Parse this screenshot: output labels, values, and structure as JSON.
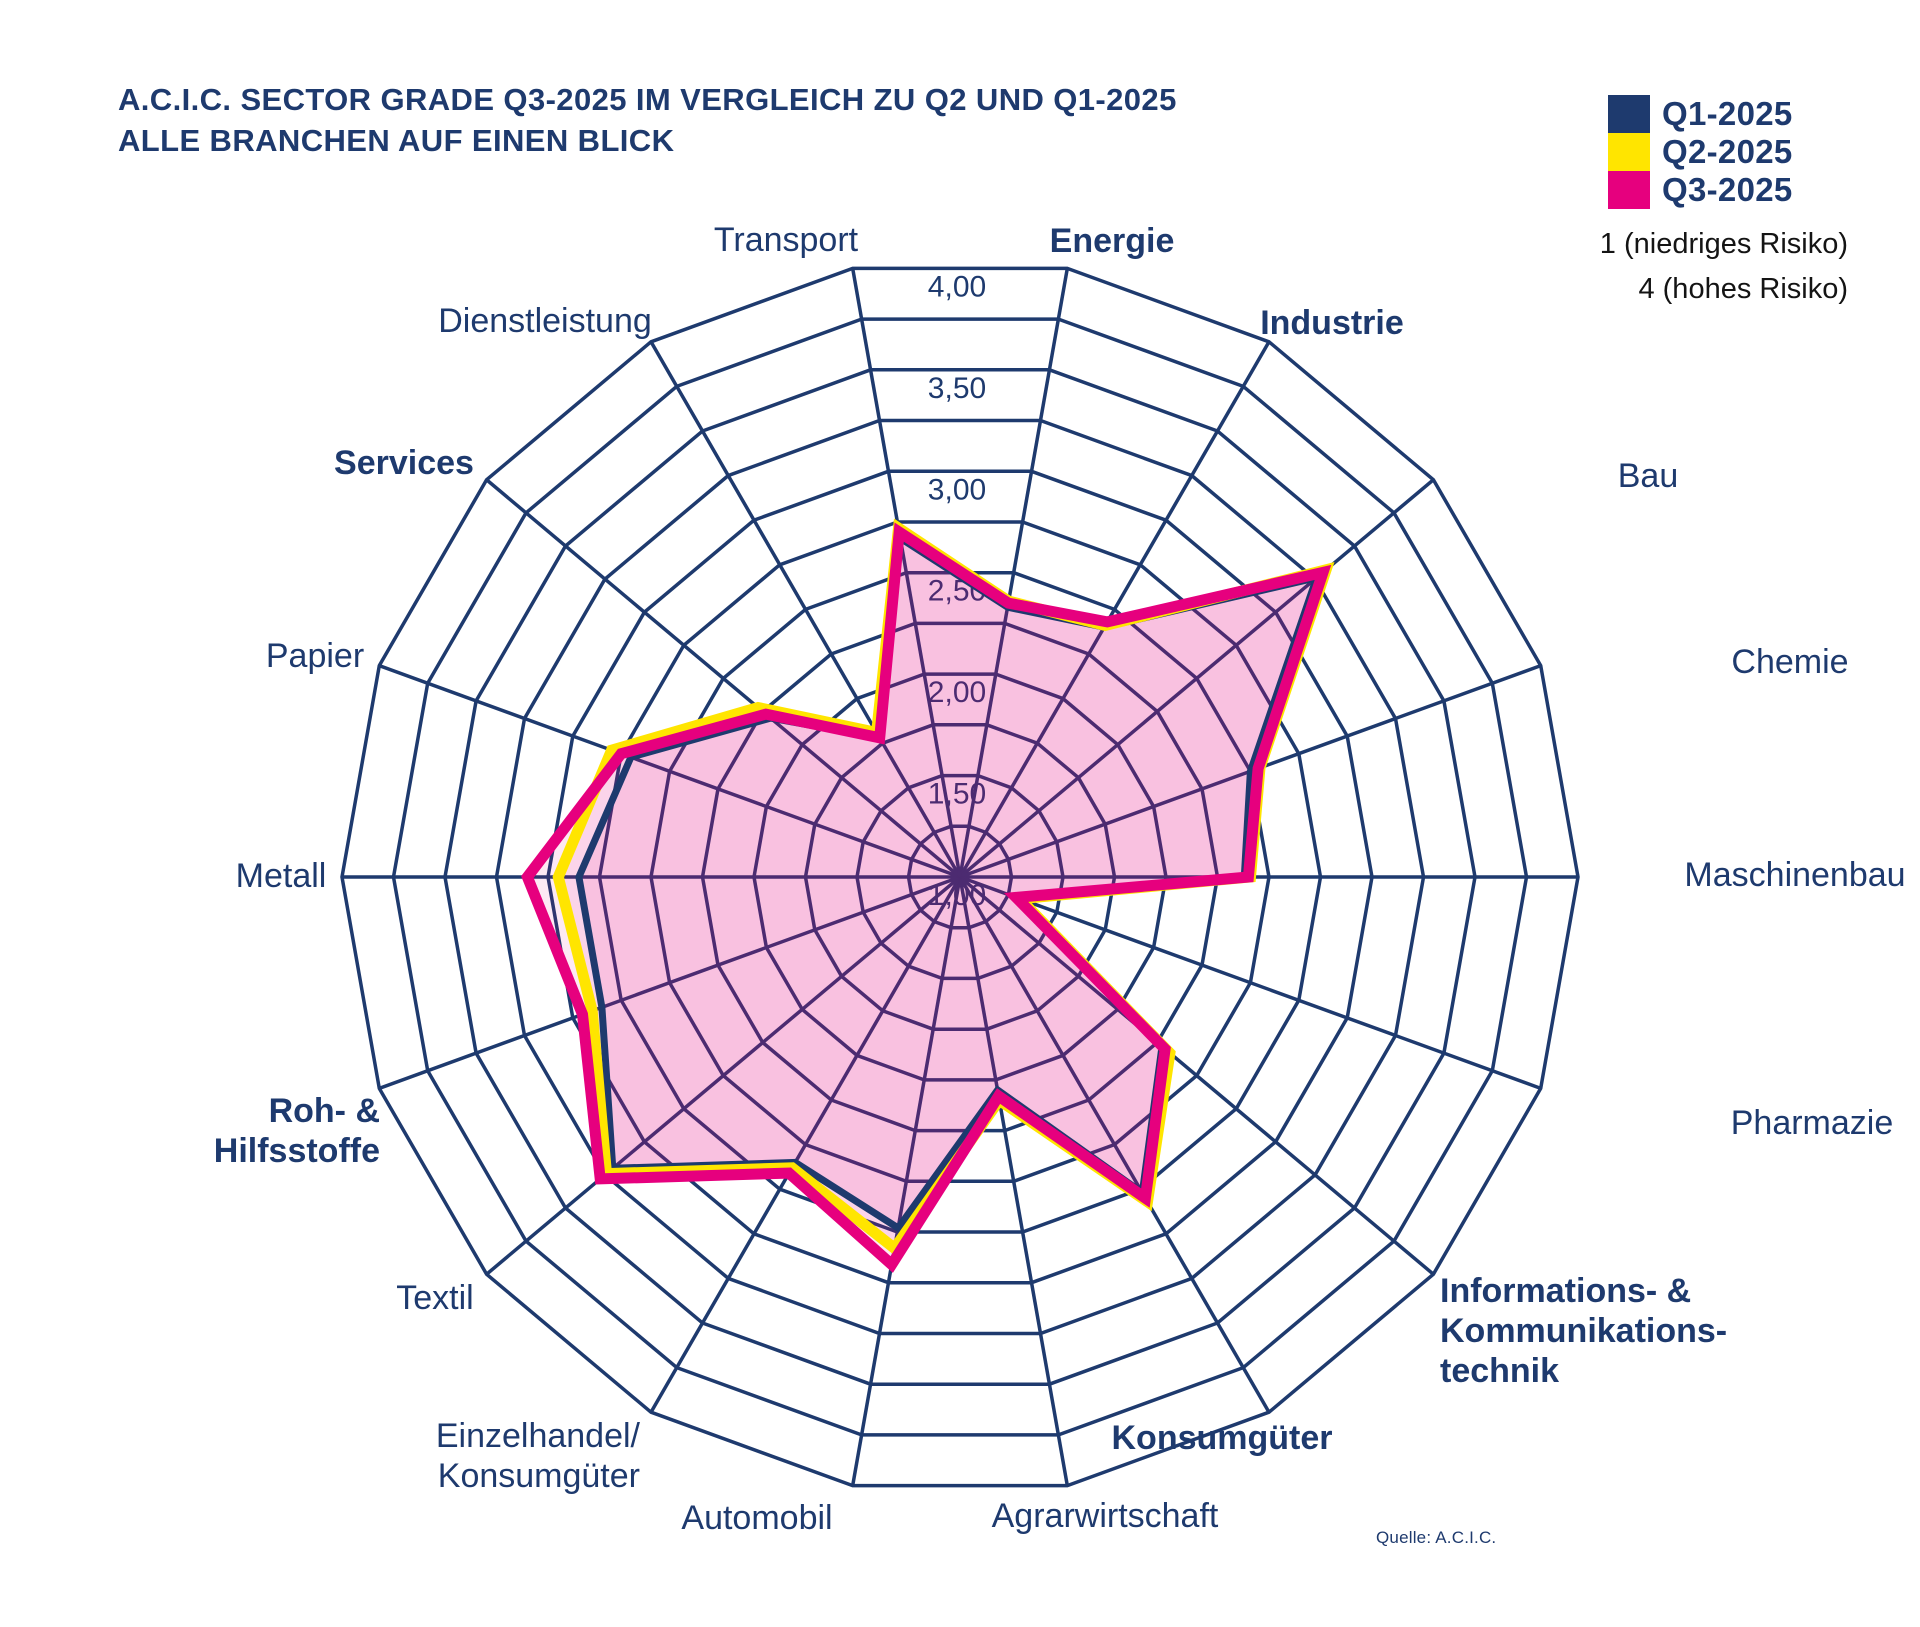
{
  "title": {
    "line1": "A.C.I.C. SECTOR GRADE Q3-2025 IM VERGLEICH ZU Q2 UND Q1-2025",
    "line2": "ALLE BRANCHEN AUF EINEN BLICK"
  },
  "legend": {
    "items": [
      {
        "label": "Q1-2025",
        "color": "#1E3A6E"
      },
      {
        "label": "Q2-2025",
        "color": "#FFE500"
      },
      {
        "label": "Q3-2025",
        "color": "#E6007E"
      }
    ],
    "risk_low": "1 (niedriges Risiko)",
    "risk_high": "4 (hohes Risiko)"
  },
  "source": "Quelle: A.C.I.C.",
  "chart_data": {
    "type": "radar",
    "title": "A.C.I.C. Sector Grade Q3-2025 im Vergleich zu Q2 und Q1-2025 — alle Branchen auf einen Blick",
    "scale": {
      "min": 1.0,
      "max": 4.0,
      "ring_step": 0.25,
      "ticks": [
        {
          "label": "4,00",
          "value": 4.0
        },
        {
          "label": "3,50",
          "value": 3.5
        },
        {
          "label": "3,00",
          "value": 3.0
        },
        {
          "label": "2,50",
          "value": 2.5
        },
        {
          "label": "2,00",
          "value": 2.0
        },
        {
          "label": "1,50",
          "value": 1.5
        },
        {
          "label": "1,00",
          "value": 1.0
        }
      ]
    },
    "categories": [
      {
        "name": "Energie",
        "lines": [
          "Energie"
        ],
        "bold": true
      },
      {
        "name": "Industrie",
        "lines": [
          "Industrie"
        ],
        "bold": true
      },
      {
        "name": "Bau",
        "lines": [
          "Bau"
        ],
        "bold": false
      },
      {
        "name": "Chemie",
        "lines": [
          "Chemie"
        ],
        "bold": false
      },
      {
        "name": "Maschinenbau",
        "lines": [
          "Maschinenbau"
        ],
        "bold": false
      },
      {
        "name": "Pharmazie",
        "lines": [
          "Pharmazie"
        ],
        "bold": false
      },
      {
        "name": "Informations- & Kommunikationstechnik",
        "lines": [
          "Informations- &",
          "Kommunikations-",
          "technik"
        ],
        "bold": true
      },
      {
        "name": "Konsumgüter",
        "lines": [
          "Konsumgüter"
        ],
        "bold": true
      },
      {
        "name": "Agrarwirtschaft",
        "lines": [
          "Agrarwirtschaft"
        ],
        "bold": false
      },
      {
        "name": "Automobil",
        "lines": [
          "Automobil"
        ],
        "bold": false
      },
      {
        "name": "Einzelhandel/Konsumgüter",
        "lines": [
          "Einzelhandel/",
          "Konsumgüter"
        ],
        "bold": false
      },
      {
        "name": "Textil",
        "lines": [
          "Textil"
        ],
        "bold": false
      },
      {
        "name": "Roh- & Hilfsstoffe",
        "lines": [
          "Roh- &",
          "Hilfsstoffe"
        ],
        "bold": true
      },
      {
        "name": "Metall",
        "lines": [
          "Metall"
        ],
        "bold": false
      },
      {
        "name": "Papier",
        "lines": [
          "Papier"
        ],
        "bold": false
      },
      {
        "name": "Services",
        "lines": [
          "Services"
        ],
        "bold": true
      },
      {
        "name": "Dienstleistung",
        "lines": [
          "Dienstleistung"
        ],
        "bold": false
      },
      {
        "name": "Transport",
        "lines": [
          "Transport"
        ],
        "bold": false
      }
    ],
    "series": [
      {
        "name": "Q1-2025",
        "color": "#1E3A6E",
        "stroke_width": 7,
        "values": [
          2.33,
          2.4,
          3.26,
          2.5,
          2.38,
          1.28,
          2.28,
          2.77,
          2.05,
          2.73,
          2.6,
          3.2,
          2.85,
          2.85,
          2.7,
          2.2,
          1.78,
          2.67
        ]
      },
      {
        "name": "Q2-2025",
        "color": "#FFE500",
        "stroke_width": 11,
        "values": [
          2.36,
          2.41,
          3.32,
          2.55,
          2.41,
          1.31,
          2.33,
          2.82,
          2.1,
          2.83,
          2.63,
          3.24,
          2.9,
          2.95,
          2.8,
          2.28,
          1.81,
          2.72
        ]
      },
      {
        "name": "Q3-2025",
        "color": "#E6007E",
        "stroke_width": 11,
        "values": [
          2.35,
          2.43,
          3.3,
          2.54,
          2.4,
          1.29,
          2.3,
          2.8,
          2.08,
          2.91,
          2.66,
          3.28,
          2.95,
          3.1,
          2.75,
          2.23,
          1.78,
          2.7
        ]
      }
    ],
    "fill_color": "#E6007E",
    "fill_opacity": 0.085,
    "grid_color": "#1E3A6E",
    "grid_on": true,
    "start_angle_deg": 10,
    "angle_step_deg": 20,
    "legend_position": "top-right"
  }
}
